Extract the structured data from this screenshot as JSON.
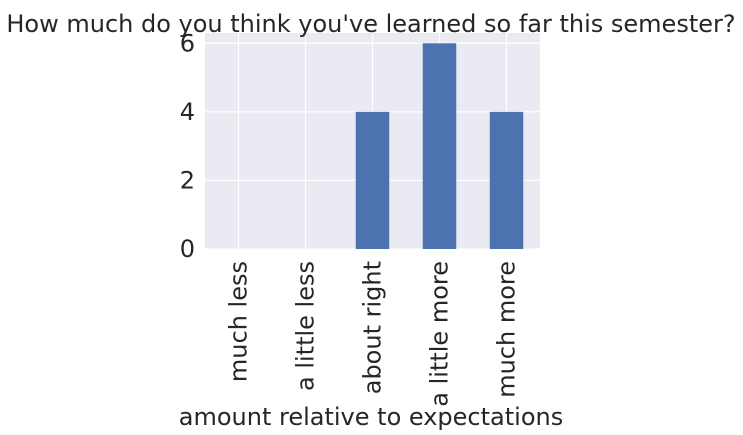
{
  "chart_data": {
    "type": "bar",
    "title": "How much do you think you've learned so far this semester?",
    "xlabel": "amount relative to expectations",
    "ylabel": "",
    "categories": [
      "much less",
      "a little less",
      "about right",
      "a little more",
      "much more"
    ],
    "values": [
      0,
      0,
      4,
      6,
      4
    ],
    "ylim": [
      0,
      6.3
    ],
    "yticks": [
      0,
      2,
      4,
      6
    ],
    "ytick_labels": [
      "0",
      "2",
      "4",
      "6"
    ],
    "grid": true,
    "legend": "none",
    "colors": {
      "bar": "#4c72b0",
      "plot_bg": "#eaeaf2",
      "grid": "#ffffff",
      "text": "#262626"
    }
  }
}
